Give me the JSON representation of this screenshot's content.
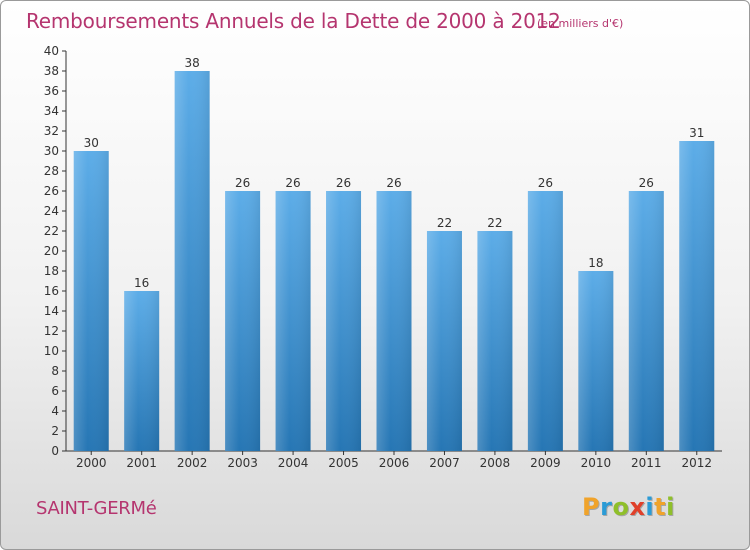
{
  "header": {
    "title": "Remboursements Annuels de la Dette de 2000 à 2012",
    "subtitle": "(en milliers d'€)"
  },
  "footer": {
    "commune": "SAINT-GERMé",
    "brand_letters": [
      {
        "char": "P",
        "color": "#f0a32b"
      },
      {
        "char": "r",
        "color": "#2a9bd6"
      },
      {
        "char": "o",
        "color": "#8fbf2a"
      },
      {
        "char": "x",
        "color": "#e0402a"
      },
      {
        "char": "i",
        "color": "#2a9bd6"
      },
      {
        "char": "t",
        "color": "#f0a32b"
      },
      {
        "char": "i",
        "color": "#8fbf2a"
      }
    ]
  },
  "colors": {
    "bar_top": "#5dade8",
    "bar_bottom": "#2676b4",
    "title": "#b5356f",
    "axis": "#333333"
  },
  "chart_data": {
    "type": "bar",
    "title": "Remboursements Annuels de la Dette de 2000 à 2012",
    "xlabel": "",
    "ylabel": "",
    "categories": [
      "2000",
      "2001",
      "2002",
      "2003",
      "2004",
      "2005",
      "2006",
      "2007",
      "2008",
      "2009",
      "2010",
      "2011",
      "2012"
    ],
    "values": [
      30,
      16,
      38,
      26,
      26,
      26,
      26,
      22,
      22,
      26,
      18,
      26,
      31
    ],
    "ylim": [
      0,
      40
    ],
    "y_ticks": [
      0,
      2,
      4,
      6,
      8,
      10,
      12,
      14,
      16,
      18,
      20,
      22,
      24,
      26,
      28,
      30,
      32,
      34,
      36,
      38,
      40
    ],
    "grid": false,
    "legend": "none"
  }
}
